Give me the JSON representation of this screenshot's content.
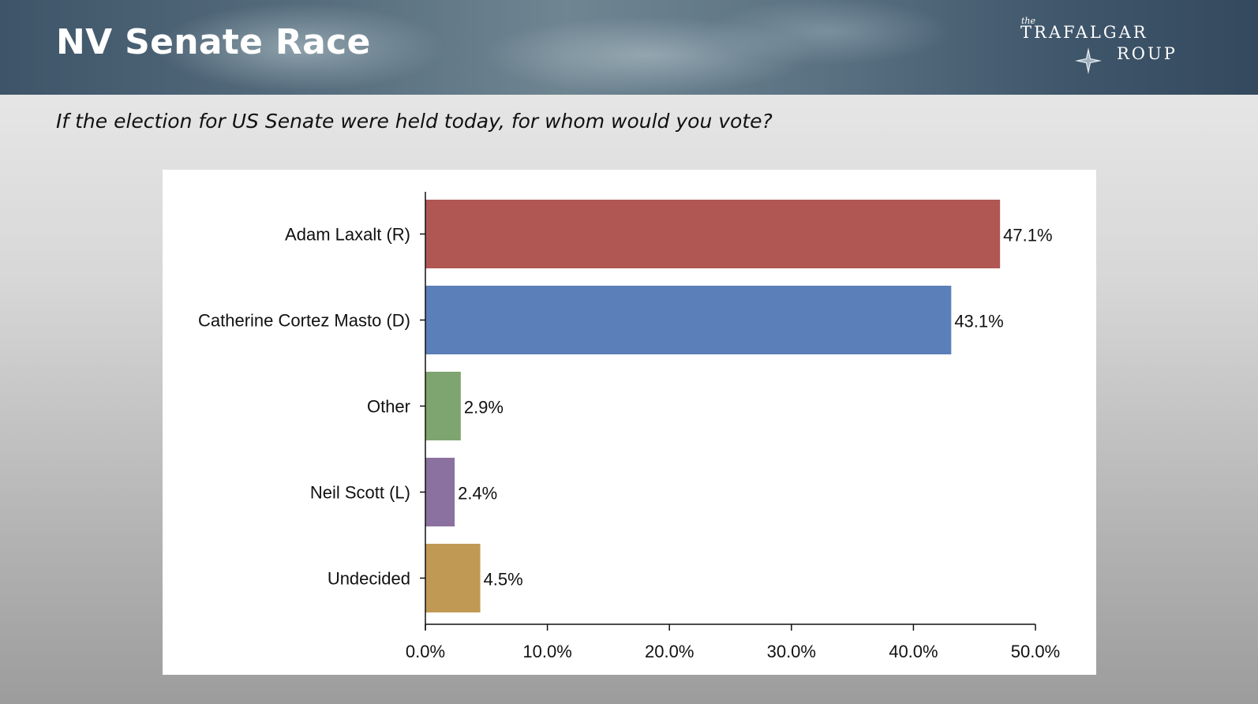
{
  "header": {
    "title": "NV Senate Race",
    "logo": {
      "the": "the",
      "line1": "TRAFALGAR",
      "line2": "ROUP"
    }
  },
  "question": "If the election for US Senate were held today, for whom would you vote?",
  "chart_data": {
    "type": "bar",
    "orientation": "horizontal",
    "categories": [
      "Adam Laxalt (R)",
      "Catherine Cortez Masto (D)",
      "Other",
      "Neil Scott (L)",
      "Undecided"
    ],
    "values": [
      47.1,
      43.1,
      2.9,
      2.4,
      4.5
    ],
    "value_labels": [
      "47.1%",
      "43.1%",
      "2.9%",
      "2.4%",
      "4.5%"
    ],
    "colors": [
      "#b05753",
      "#5b7fb8",
      "#7ea56f",
      "#8b71a0",
      "#c09a55"
    ],
    "xlim": [
      0,
      50
    ],
    "xticks": [
      0,
      10,
      20,
      30,
      40,
      50
    ],
    "xtick_labels": [
      "0.0%",
      "10.0%",
      "20.0%",
      "30.0%",
      "40.0%",
      "50.0%"
    ],
    "title": "",
    "xlabel": "",
    "ylabel": "",
    "grid": false,
    "legend": "none"
  }
}
